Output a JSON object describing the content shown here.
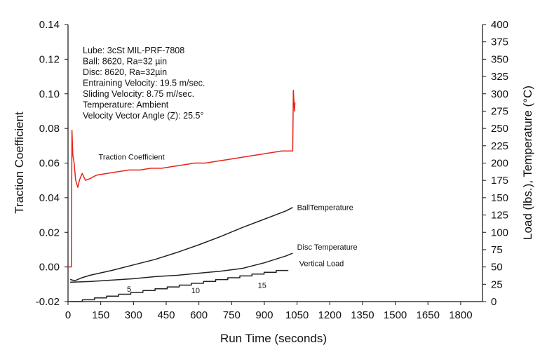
{
  "chart_data": {
    "type": "line",
    "xlabel": "Run Time (seconds)",
    "ylabel": "Traction Coefficient",
    "y2label": "Load (lbs.), Temperature (°C)",
    "xlim": [
      0,
      1900
    ],
    "ylim": [
      -0.02,
      0.14
    ],
    "y2lim": [
      0,
      400
    ],
    "x_ticks": [
      "0",
      "150",
      "300",
      "450",
      "600",
      "750",
      "900",
      "1050",
      "1200",
      "1350",
      "1500",
      "1650",
      "1800"
    ],
    "y_ticks": [
      "-0.02",
      "0.00",
      "0.02",
      "0.04",
      "0.06",
      "0.08",
      "0.10",
      "0.12",
      "0.14"
    ],
    "y2_ticks": [
      "0",
      "25",
      "50",
      "75",
      "100",
      "125",
      "150",
      "175",
      "200",
      "225",
      "250",
      "275",
      "300",
      "325",
      "350",
      "375",
      "400"
    ],
    "grid": false,
    "info_lines": [
      "Lube: 3cSt MIL-PRF-7808",
      "Ball: 8620, Ra=32  µin",
      "Disc:  8620, Ra=32µin",
      "Entraining Velocity:  19.5  m/sec.",
      "Sliding Velocity:  8.75 m//sec.",
      "Temperature:  Ambient",
      "Velocity Vector Angle (Z):  25.5°"
    ],
    "series": [
      {
        "name": "Traction Coefficient",
        "axis": "left",
        "color": "#e8231c",
        "x": [
          0,
          15,
          18,
          22,
          28,
          35,
          45,
          52,
          58,
          65,
          80,
          100,
          130,
          180,
          230,
          280,
          330,
          380,
          430,
          480,
          530,
          580,
          630,
          680,
          730,
          780,
          830,
          880,
          930,
          980,
          1020,
          1030,
          1033,
          1038,
          1040
        ],
        "y": [
          0.0,
          0.0,
          0.079,
          0.065,
          0.06,
          0.05,
          0.046,
          0.05,
          0.052,
          0.054,
          0.05,
          0.051,
          0.053,
          0.054,
          0.055,
          0.056,
          0.056,
          0.057,
          0.057,
          0.058,
          0.059,
          0.06,
          0.06,
          0.061,
          0.062,
          0.063,
          0.064,
          0.065,
          0.066,
          0.067,
          0.067,
          0.067,
          0.102,
          0.09,
          0.095
        ]
      },
      {
        "name": "BallTemperature",
        "axis": "right",
        "color": "#222222",
        "x": [
          10,
          30,
          60,
          100,
          200,
          300,
          400,
          500,
          600,
          700,
          800,
          900,
          1000,
          1030
        ],
        "y": [
          32,
          30,
          34,
          38,
          45,
          53,
          61,
          71,
          82,
          94,
          107,
          119,
          131,
          136
        ]
      },
      {
        "name": "Disc Temperature",
        "axis": "right",
        "color": "#222222",
        "x": [
          10,
          100,
          200,
          300,
          400,
          500,
          600,
          700,
          800,
          900,
          1000,
          1030
        ],
        "y": [
          28,
          29,
          31,
          33,
          36,
          38,
          41,
          44,
          48,
          56,
          66,
          70
        ]
      },
      {
        "name": "Vertical Load",
        "axis": "right",
        "color": "#222222",
        "x": [
          10,
          1010
        ],
        "y": [
          0,
          45
        ]
      }
    ],
    "annotations": [
      {
        "text": "Traction Coefficient",
        "x": 140,
        "y": 0.062,
        "axis": "left"
      },
      {
        "text": "BallTemperature",
        "x": 1050,
        "y": 132,
        "axis": "right"
      },
      {
        "text": "Disc Temperature",
        "x": 1050,
        "y": 75,
        "axis": "right"
      },
      {
        "text": "Vertical Load",
        "x": 1060,
        "y": 51,
        "axis": "right"
      },
      {
        "text": "5",
        "x": 270,
        "y": 14,
        "axis": "right"
      },
      {
        "text": "10",
        "x": 565,
        "y": 12,
        "axis": "right"
      },
      {
        "text": "15",
        "x": 870,
        "y": 20,
        "axis": "right"
      }
    ]
  }
}
